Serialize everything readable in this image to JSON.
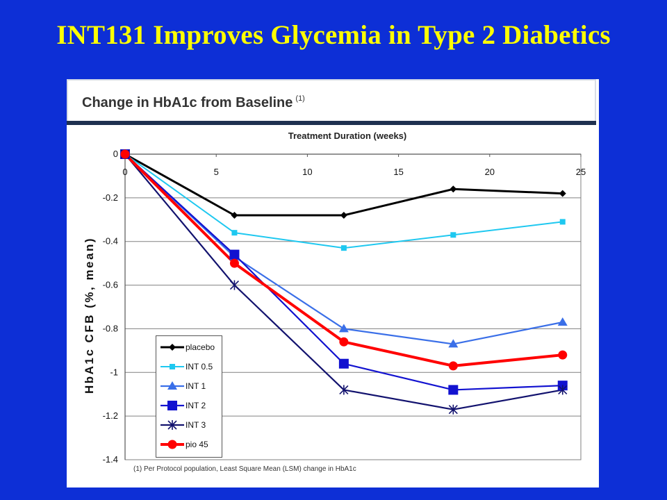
{
  "slide": {
    "title": "INT131 Improves Glycemia in Type 2 Diabetics"
  },
  "panel": {
    "title": "Change in HbA1c from Baseline",
    "title_superscript": "(1)",
    "footnote": "(1) Per Protocol population, Least Square Mean (LSM) change in HbA1c"
  },
  "chart_data": {
    "type": "line",
    "title": "Change in HbA1c from Baseline",
    "xlabel": "Treatment Duration (weeks)",
    "ylabel": "HbA1c CFB (%, mean)",
    "xlim": [
      0,
      25
    ],
    "ylim": [
      -1.4,
      0
    ],
    "x_ticks": [
      0,
      5,
      10,
      15,
      20,
      25
    ],
    "y_ticks": [
      0,
      -0.2,
      -0.4,
      -0.6,
      -0.8,
      -1,
      -1.2,
      -1.4
    ],
    "y_tick_labels": [
      "0",
      "-0.2",
      "-0.4",
      "-0.6",
      "-0.8",
      "-1",
      "-1.2",
      "-1.4"
    ],
    "x_axis_position": "top",
    "grid": "horizontal",
    "legend_position": "bottom-left",
    "x": [
      0,
      6,
      12,
      18,
      24
    ],
    "series": [
      {
        "name": "placebo",
        "values": [
          0,
          -0.28,
          -0.28,
          -0.16,
          -0.18
        ],
        "color": "#000000",
        "marker": "diamond"
      },
      {
        "name": "INT 0.5",
        "values": [
          0,
          -0.36,
          -0.43,
          -0.37,
          -0.31
        ],
        "color": "#1ec8f0",
        "marker": "square-small"
      },
      {
        "name": "INT 1",
        "values": [
          0,
          -0.47,
          -0.8,
          -0.87,
          -0.77
        ],
        "color": "#3a6fe8",
        "marker": "triangle"
      },
      {
        "name": "INT 2",
        "values": [
          0,
          -0.46,
          -0.96,
          -1.08,
          -1.06
        ],
        "color": "#1212d0",
        "marker": "square"
      },
      {
        "name": "INT 3",
        "values": [
          0,
          -0.6,
          -1.08,
          -1.17,
          -1.08
        ],
        "color": "#12126e",
        "marker": "asterisk"
      },
      {
        "name": "pio 45",
        "values": [
          0,
          -0.5,
          -0.86,
          -0.97,
          -0.92
        ],
        "color": "#ff0000",
        "marker": "circle"
      }
    ]
  }
}
